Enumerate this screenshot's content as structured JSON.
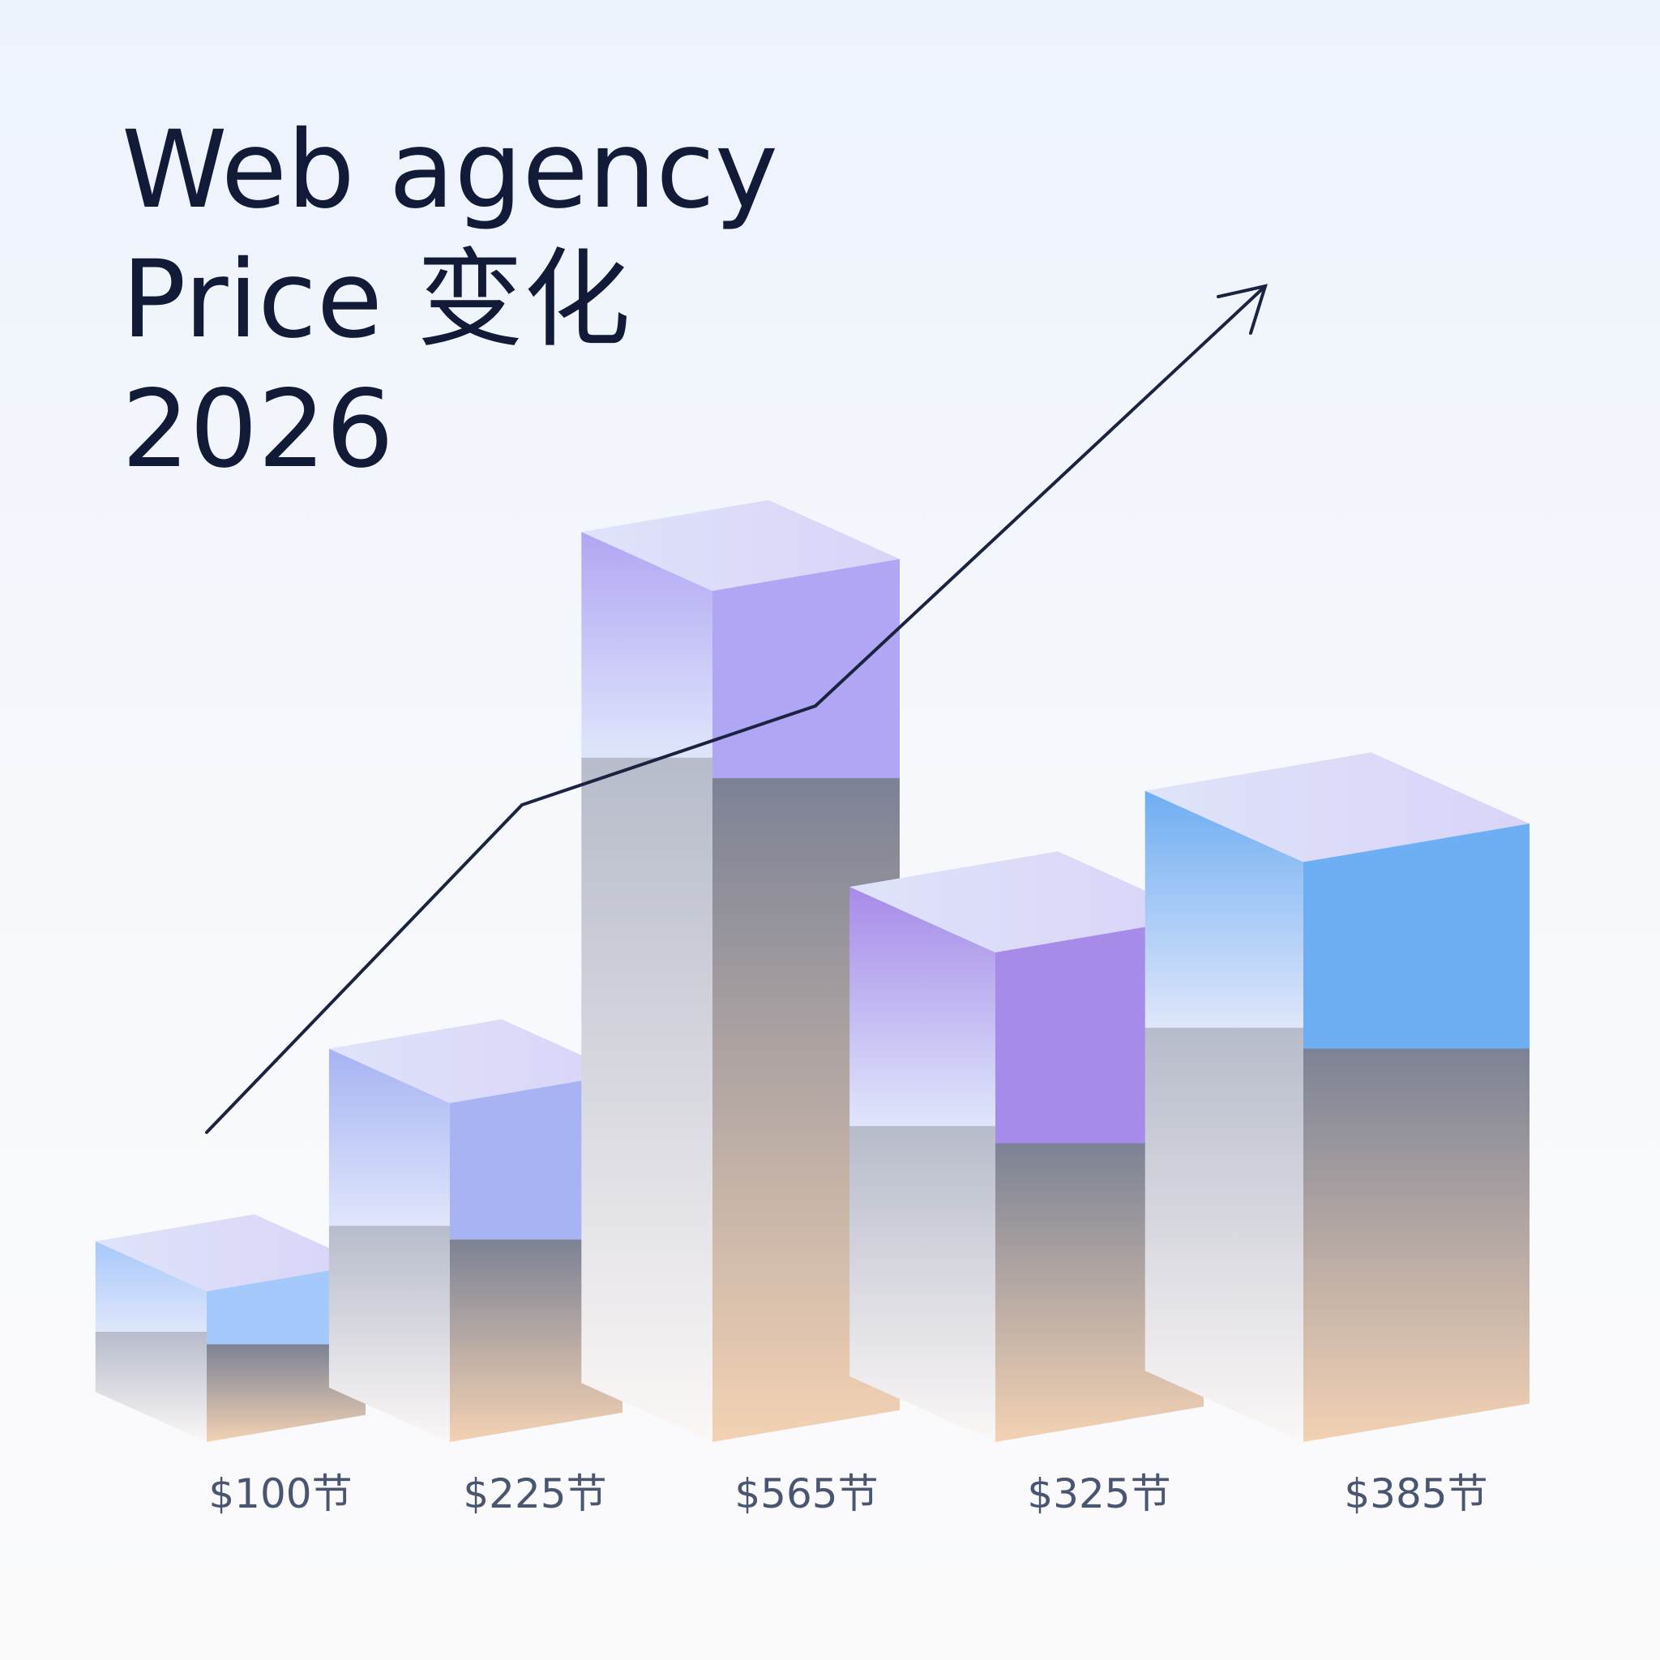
{
  "chart_data": {
    "type": "bar3d",
    "title": [
      "Web agency",
      "Price 变化",
      "2026"
    ],
    "values": [
      100,
      225,
      565,
      325,
      385
    ],
    "value_labels": [
      "$100节",
      "$225节",
      "$565节",
      "$325节",
      "$385节"
    ],
    "colors": [
      "#a6c9fb",
      "#a7b3f3",
      "#b1a6f4",
      "#a68be9",
      "#6eaef2"
    ]
  }
}
